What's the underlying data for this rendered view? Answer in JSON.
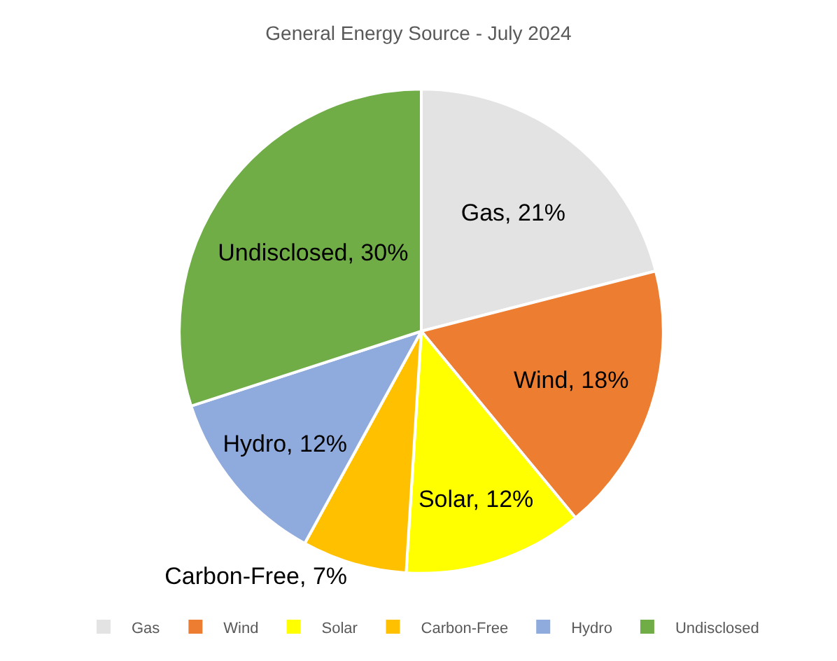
{
  "chart_data": {
    "type": "pie",
    "title": "General Energy Source - July 2024",
    "categories": [
      "Gas",
      "Wind",
      "Solar",
      "Carbon-Free",
      "Hydro",
      "Undisclosed"
    ],
    "values": [
      21,
      18,
      12,
      7,
      12,
      30
    ],
    "colors": [
      "#e3e3e3",
      "#ed7d31",
      "#ffff00",
      "#ffc000",
      "#8faadc",
      "#70ad47"
    ],
    "value_labels": [
      "Gas, 21%",
      "Wind, 18%",
      "Solar, 12%",
      "Carbon-Free, 7%",
      "Hydro, 12%",
      "Undisclosed, 30%"
    ],
    "legend": "bottom"
  }
}
